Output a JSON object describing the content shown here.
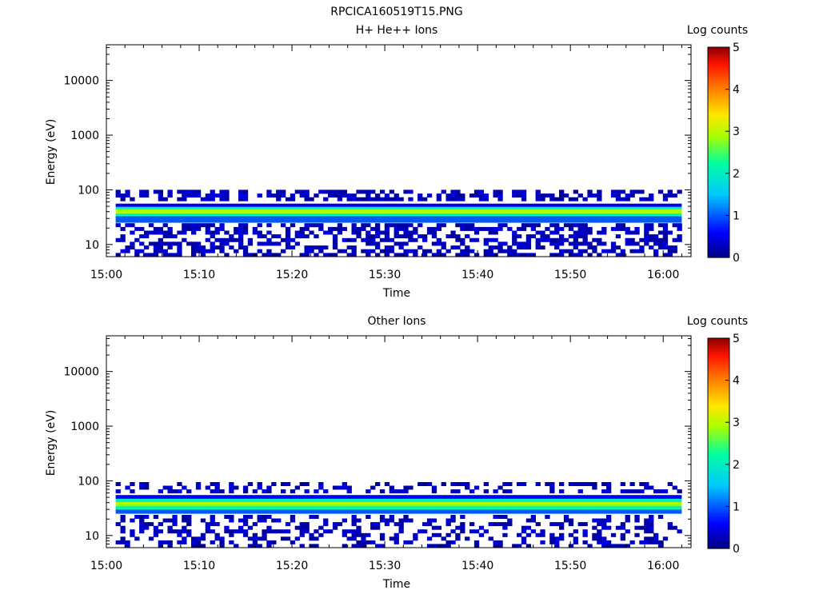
{
  "figure_title": "RPCICA160519T15.PNG",
  "chart_data": [
    {
      "type": "heatmap",
      "title": "H+ He++ Ions",
      "xlabel": "Time",
      "ylabel": "Energy (eV)",
      "colorbar_label": "Log counts",
      "x_ticks": [
        "15:00",
        "15:10",
        "15:20",
        "15:30",
        "15:40",
        "15:50",
        "16:00"
      ],
      "x_range": [
        "15:00",
        "16:03"
      ],
      "data_x_range": [
        "15:01",
        "16:02"
      ],
      "y_scale": "log",
      "y_ticks": [
        10,
        100,
        1000,
        10000
      ],
      "y_tick_labels": [
        "10",
        "100",
        "1000",
        "10000"
      ],
      "ylim": [
        6,
        45000
      ],
      "colorbar_ticks": [
        "0",
        "1",
        "2",
        "3",
        "4",
        "5"
      ],
      "clim": [
        0,
        5
      ],
      "colormap": "rainbow",
      "spectrum_bands": [
        {
          "energy_low": 25,
          "energy_high": 33,
          "log_counts": 1.0,
          "description": "cyan-blue"
        },
        {
          "energy_low": 33,
          "energy_high": 37,
          "log_counts": 2.2,
          "description": "green"
        },
        {
          "energy_low": 37,
          "energy_high": 44,
          "log_counts": 2.9,
          "description": "yellow-green peak"
        },
        {
          "energy_low": 44,
          "energy_high": 49,
          "log_counts": 2.0,
          "description": "green"
        },
        {
          "energy_low": 49,
          "energy_high": 56,
          "log_counts": 0.5,
          "description": "blue"
        }
      ],
      "scatter_region": {
        "energy_low": 6,
        "energy_high": 100,
        "log_counts_low": 0.1,
        "log_counts_high": 0.45,
        "coverage": 0.5
      }
    },
    {
      "type": "heatmap",
      "title": "Other Ions",
      "xlabel": "Time",
      "ylabel": "Energy (eV)",
      "colorbar_label": "Log counts",
      "x_ticks": [
        "15:00",
        "15:10",
        "15:20",
        "15:30",
        "15:40",
        "15:50",
        "16:00"
      ],
      "x_range": [
        "15:00",
        "16:03"
      ],
      "data_x_range": [
        "15:01",
        "16:02"
      ],
      "y_scale": "log",
      "y_ticks": [
        10,
        100,
        1000,
        10000
      ],
      "y_tick_labels": [
        "10",
        "100",
        "1000",
        "10000"
      ],
      "ylim": [
        6,
        45000
      ],
      "colorbar_ticks": [
        "0",
        "1",
        "2",
        "3",
        "4",
        "5"
      ],
      "clim": [
        0,
        5
      ],
      "colormap": "rainbow",
      "spectrum_bands": [
        {
          "energy_low": 25,
          "energy_high": 30,
          "log_counts": 1.0,
          "description": "cyan-blue"
        },
        {
          "energy_low": 30,
          "energy_high": 35,
          "log_counts": 2.2,
          "description": "green"
        },
        {
          "energy_low": 35,
          "energy_high": 41,
          "log_counts": 2.9,
          "description": "yellow-green peak"
        },
        {
          "energy_low": 41,
          "energy_high": 47,
          "log_counts": 2.0,
          "description": "green"
        },
        {
          "energy_low": 47,
          "energy_high": 55,
          "log_counts": 0.6,
          "description": "blue"
        }
      ],
      "scatter_region": {
        "energy_low": 6,
        "energy_high": 95,
        "log_counts_low": 0.1,
        "log_counts_high": 0.45,
        "coverage": 0.35
      }
    }
  ]
}
